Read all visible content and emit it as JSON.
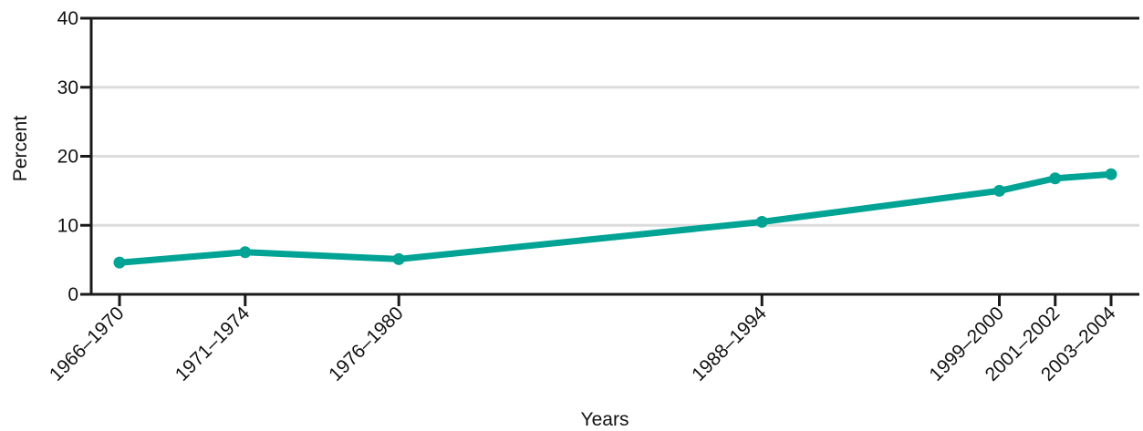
{
  "chart_data": {
    "type": "line",
    "title": "",
    "xlabel": "Years",
    "ylabel": "Percent",
    "ylim": [
      0,
      40
    ],
    "yticks": [
      0,
      10,
      20,
      30,
      40
    ],
    "grid": "horizontal",
    "legend": "none",
    "x": [
      1968,
      1972.5,
      1978,
      1991,
      1999.5,
      2001.5,
      2003.5
    ],
    "categories": [
      "1966–1970",
      "1971–1974",
      "1976–1980",
      "1988–1994",
      "1999–2000",
      "2001–2002",
      "2003–2004"
    ],
    "series": [
      {
        "values": [
          4.6,
          6.1,
          5.1,
          10.5,
          15.0,
          16.8,
          17.4
        ]
      }
    ],
    "colors": {
      "line": "#00A394",
      "grid": "#dcdcdc",
      "axis": "#1a1a1a"
    }
  }
}
